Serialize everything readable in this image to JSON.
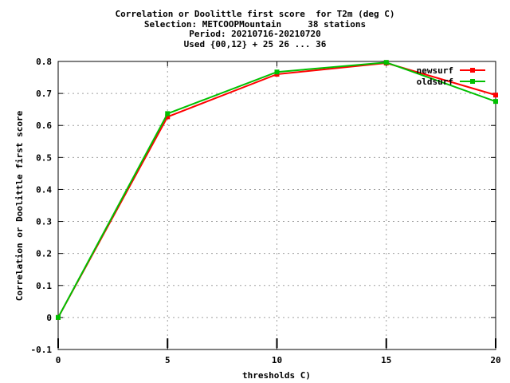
{
  "chart_data": {
    "type": "line",
    "title_lines": [
      "Correlation or Doolittle first score  for T2m (deg C)",
      "Selection: METCOOPMountain     38 stations",
      "Period: 20210716-20210720",
      "Used {00,12} + 25 26 ... 36"
    ],
    "xlabel": "thresholds C)",
    "ylabel": "Correlation or Doolittle first score",
    "xlim": [
      0,
      20
    ],
    "ylim": [
      -0.1,
      0.8
    ],
    "xticks": [
      0,
      5,
      10,
      15,
      20
    ],
    "yticks": [
      -0.1,
      0,
      0.1,
      0.2,
      0.3,
      0.4,
      0.5,
      0.6,
      0.7,
      0.8
    ],
    "ytick_labels": [
      "-0.1",
      "0",
      "0.1",
      "0.2",
      "0.3",
      "0.4",
      "0.5",
      "0.6",
      "0.7",
      "0.8"
    ],
    "grid": true,
    "legend_position": "top-right",
    "x": [
      0,
      5,
      10,
      15,
      20
    ],
    "series": [
      {
        "name": "newsurf",
        "color": "#ff0000",
        "values": [
          0.0,
          0.627,
          0.76,
          0.795,
          0.695
        ]
      },
      {
        "name": "oldsurf",
        "color": "#00c000",
        "values": [
          0.0,
          0.637,
          0.767,
          0.797,
          0.675
        ]
      }
    ]
  }
}
